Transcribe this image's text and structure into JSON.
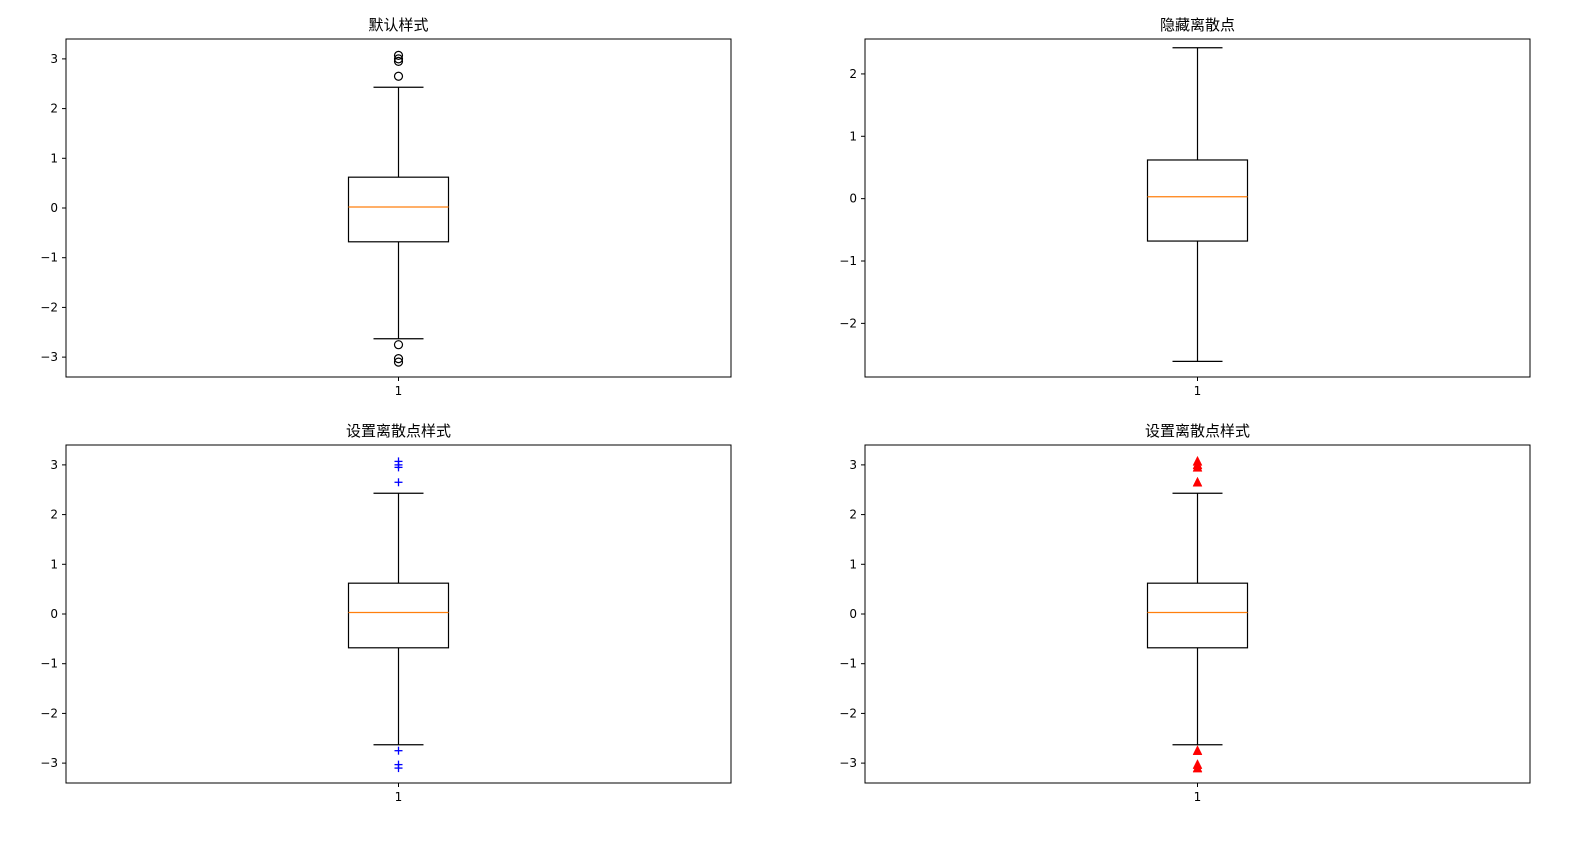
{
  "chart_data": [
    {
      "type": "box",
      "title": "默认样式",
      "categories": [
        "1"
      ],
      "ylim": [
        -3.4,
        3.4
      ],
      "yticks": [
        -3,
        -2,
        -1,
        0,
        1,
        2,
        3
      ],
      "ytick_labels": [
        "−3",
        "−2",
        "−1",
        "0",
        "1",
        "2",
        "3"
      ],
      "box": {
        "whisker_low": -2.63,
        "q1": -0.68,
        "median": 0.02,
        "q3": 0.62,
        "whisker_high": 2.43
      },
      "outliers": [
        3.07,
        3.0,
        2.95,
        2.65,
        -2.75,
        -3.03,
        -3.1
      ],
      "outlier_marker": "circle",
      "outlier_color": "#000000",
      "show_outliers": true,
      "box_color": "#000000",
      "median_color": "#ff7f0e",
      "grid": false
    },
    {
      "type": "box",
      "title": "隐藏离散点",
      "categories": [
        "1"
      ],
      "ylim": [
        -2.86,
        2.56
      ],
      "yticks": [
        -2,
        -1,
        0,
        1,
        2
      ],
      "ytick_labels": [
        "−2",
        "−1",
        "0",
        "1",
        "2"
      ],
      "box": {
        "whisker_low": -2.61,
        "q1": -0.68,
        "median": 0.03,
        "q3": 0.62,
        "whisker_high": 2.42
      },
      "outliers": [],
      "show_outliers": false,
      "box_color": "#000000",
      "median_color": "#ff7f0e",
      "grid": false
    },
    {
      "type": "box",
      "title": "设置离散点样式",
      "categories": [
        "1"
      ],
      "ylim": [
        -3.4,
        3.4
      ],
      "yticks": [
        -3,
        -2,
        -1,
        0,
        1,
        2,
        3
      ],
      "ytick_labels": [
        "−3",
        "−2",
        "−1",
        "0",
        "1",
        "2",
        "3"
      ],
      "box": {
        "whisker_low": -2.63,
        "q1": -0.68,
        "median": 0.03,
        "q3": 0.62,
        "whisker_high": 2.43
      },
      "outliers": [
        3.07,
        3.0,
        2.95,
        2.65,
        -2.75,
        -3.03,
        -3.1
      ],
      "outlier_marker": "plus",
      "outlier_color": "#0000ff",
      "show_outliers": true,
      "box_color": "#000000",
      "median_color": "#ff7f0e",
      "grid": false
    },
    {
      "type": "box",
      "title": "设置离散点样式",
      "categories": [
        "1"
      ],
      "ylim": [
        -3.4,
        3.4
      ],
      "yticks": [
        -3,
        -2,
        -1,
        0,
        1,
        2,
        3
      ],
      "ytick_labels": [
        "−3",
        "−2",
        "−1",
        "0",
        "1",
        "2",
        "3"
      ],
      "box": {
        "whisker_low": -2.63,
        "q1": -0.68,
        "median": 0.03,
        "q3": 0.62,
        "whisker_high": 2.43
      },
      "outliers": [
        3.07,
        3.0,
        2.95,
        2.65,
        -2.75,
        -3.03,
        -3.1
      ],
      "outlier_marker": "triangle",
      "outlier_color": "#ff0000",
      "show_outliers": true,
      "box_color": "#000000",
      "median_color": "#ff7f0e",
      "grid": false
    }
  ]
}
